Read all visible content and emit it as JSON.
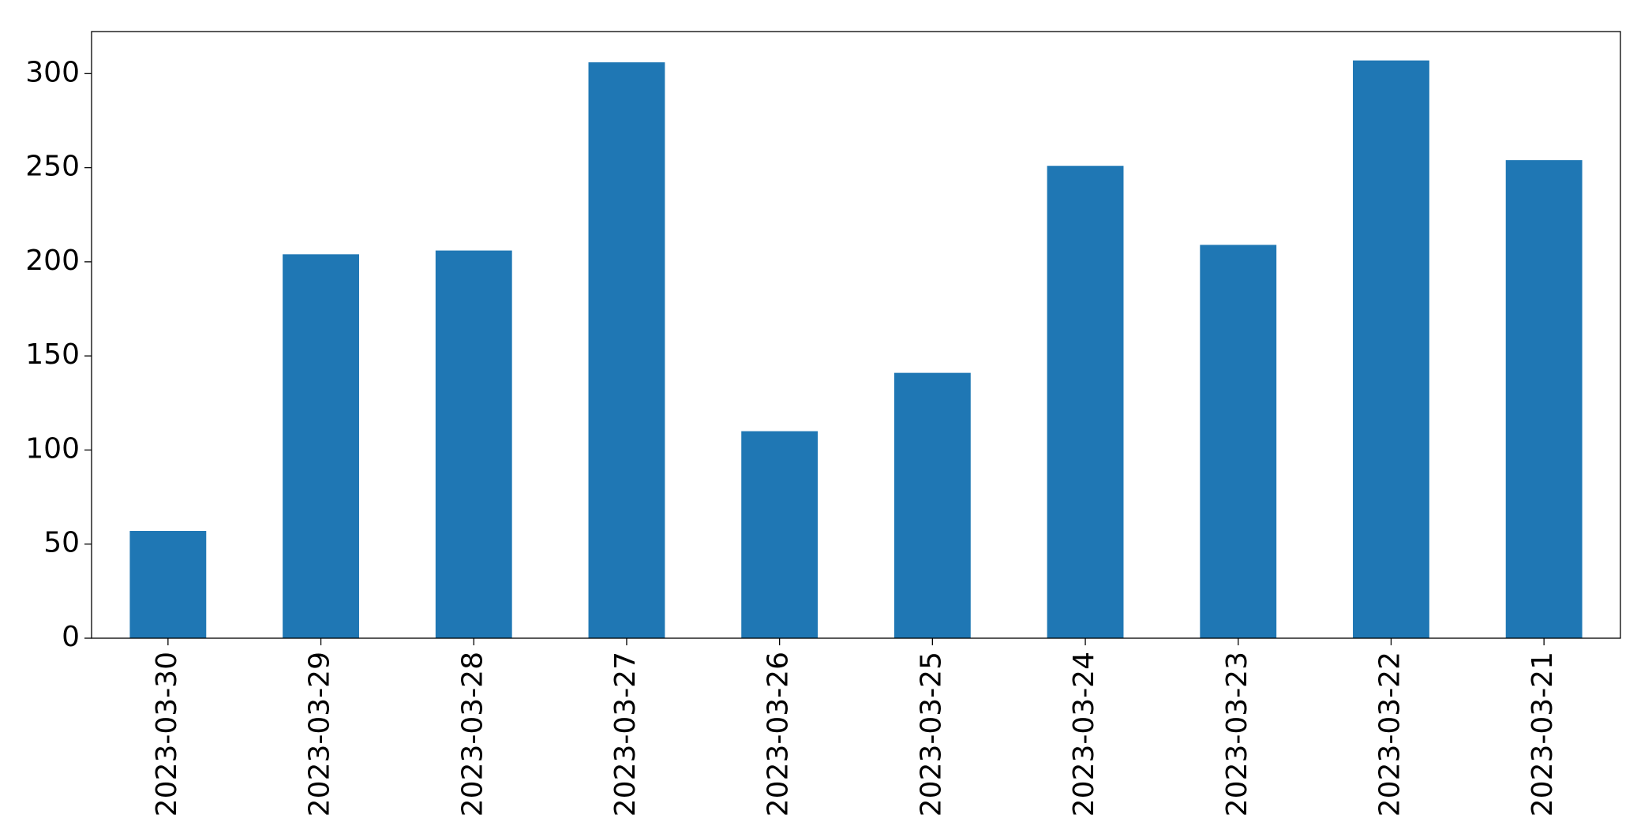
{
  "chart_data": {
    "type": "bar",
    "categories": [
      "2023-03-30",
      "2023-03-29",
      "2023-03-28",
      "2023-03-27",
      "2023-03-26",
      "2023-03-25",
      "2023-03-24",
      "2023-03-23",
      "2023-03-22",
      "2023-03-21"
    ],
    "values": [
      57,
      204,
      206,
      306,
      110,
      141,
      251,
      209,
      307,
      254
    ],
    "color": "#1f77b4",
    "ylim": [
      0,
      322.35
    ],
    "yticks": [
      0,
      50,
      100,
      150,
      200,
      250,
      300
    ],
    "grid": false
  }
}
